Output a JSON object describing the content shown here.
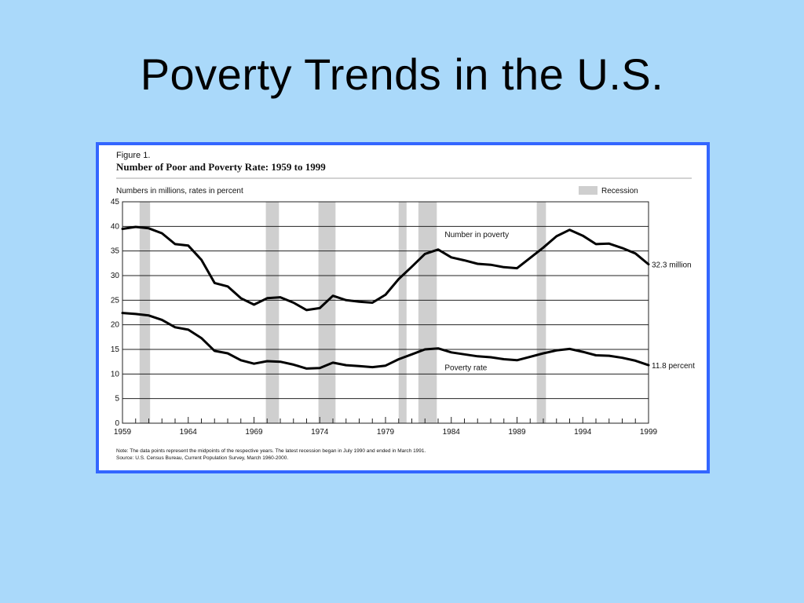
{
  "slide": {
    "title": "Poverty Trends in the  U.S."
  },
  "figure": {
    "label": "Figure 1.",
    "title": "Number of Poor and Poverty Rate:  1959 to 1999",
    "units_note": "Numbers in millions, rates in percent",
    "legend_recession": "Recession",
    "note_line1": "Note:  The data points represent the midpoints of the respective years.  The latest recession began in July 1990 and ended in March 1991.",
    "note_line2": "Source:  U.S. Census Bureau, Current Population Survey, March 1960-2000."
  },
  "chart_data": {
    "type": "line",
    "title": "Number of Poor and Poverty Rate:  1959 to 1999",
    "ylabel": "Numbers in millions, rates in percent",
    "xlim": [
      1959,
      1999
    ],
    "ylim": [
      0,
      45
    ],
    "grid": true,
    "x_tick_labels": [
      "1959",
      "1964",
      "1969",
      "1974",
      "1979",
      "1984",
      "1989",
      "1994",
      "1999"
    ],
    "y_tick_labels": [
      "0",
      "5",
      "10",
      "15",
      "20",
      "25",
      "30",
      "35",
      "40",
      "45"
    ],
    "recessions": [
      [
        1960.3,
        1961.1
      ],
      [
        1969.9,
        1970.9
      ],
      [
        1973.9,
        1975.2
      ],
      [
        1980.0,
        1980.6
      ],
      [
        1981.5,
        1982.9
      ],
      [
        1990.5,
        1991.2
      ]
    ],
    "x": [
      1959,
      1960,
      1961,
      1962,
      1963,
      1964,
      1965,
      1966,
      1967,
      1968,
      1969,
      1970,
      1971,
      1972,
      1973,
      1974,
      1975,
      1976,
      1977,
      1978,
      1979,
      1980,
      1981,
      1982,
      1983,
      1984,
      1985,
      1986,
      1987,
      1988,
      1989,
      1990,
      1991,
      1992,
      1993,
      1994,
      1995,
      1996,
      1997,
      1998,
      1999
    ],
    "series": [
      {
        "name": "Number in poverty",
        "end_label": "32.3 million",
        "values": [
          39.5,
          39.9,
          39.6,
          38.6,
          36.4,
          36.1,
          33.2,
          28.5,
          27.8,
          25.4,
          24.1,
          25.4,
          25.6,
          24.5,
          23.0,
          23.4,
          25.9,
          25.0,
          24.7,
          24.5,
          26.1,
          29.3,
          31.8,
          34.4,
          35.3,
          33.7,
          33.1,
          32.4,
          32.2,
          31.7,
          31.5,
          33.6,
          35.7,
          38.0,
          39.3,
          38.1,
          36.4,
          36.5,
          35.6,
          34.5,
          32.3
        ]
      },
      {
        "name": "Poverty rate",
        "end_label": "11.8 percent",
        "values": [
          22.4,
          22.2,
          21.9,
          21.0,
          19.5,
          19.0,
          17.3,
          14.7,
          14.2,
          12.8,
          12.1,
          12.6,
          12.5,
          11.9,
          11.1,
          11.2,
          12.3,
          11.8,
          11.6,
          11.4,
          11.7,
          13.0,
          14.0,
          15.0,
          15.2,
          14.4,
          14.0,
          13.6,
          13.4,
          13.0,
          12.8,
          13.5,
          14.2,
          14.8,
          15.1,
          14.5,
          13.8,
          13.7,
          13.3,
          12.7,
          11.8
        ]
      }
    ]
  }
}
